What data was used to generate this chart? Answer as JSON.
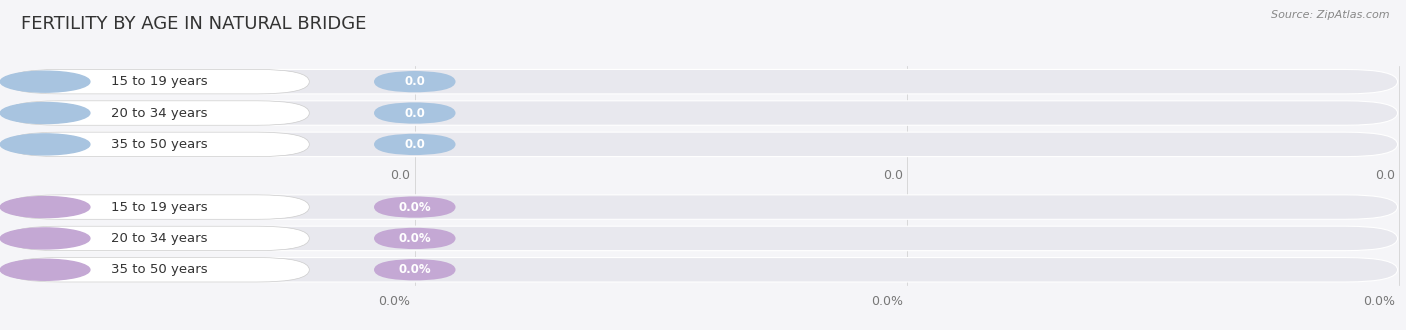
{
  "title": "FERTILITY BY AGE IN NATURAL BRIDGE",
  "source": "Source: ZipAtlas.com",
  "top_group": {
    "labels": [
      "15 to 19 years",
      "20 to 34 years",
      "35 to 50 years"
    ],
    "values": [
      0.0,
      0.0,
      0.0
    ],
    "bar_color": "#a8c4e0",
    "circle_color": "#a8c4e0",
    "value_strs": [
      "0.0",
      "0.0",
      "0.0"
    ]
  },
  "bottom_group": {
    "labels": [
      "15 to 19 years",
      "20 to 34 years",
      "35 to 50 years"
    ],
    "values": [
      0.0,
      0.0,
      0.0
    ],
    "bar_color": "#c4a8d4",
    "circle_color": "#c4a8d4",
    "value_strs": [
      "0.0%",
      "0.0%",
      "0.0%"
    ]
  },
  "top_axis_ticks": [
    "0.0",
    "0.0",
    "0.0"
  ],
  "bottom_axis_ticks": [
    "0.0%",
    "0.0%",
    "0.0%"
  ],
  "bg_color": "#f5f5f8",
  "bar_bg_color": "#e8e8ee",
  "label_pill_color": "#ffffff",
  "grid_color": "#cccccc",
  "tick_color": "#777777",
  "title_color": "#333333",
  "source_color": "#888888",
  "label_text_color": "#333333",
  "value_text_color": "#ffffff"
}
